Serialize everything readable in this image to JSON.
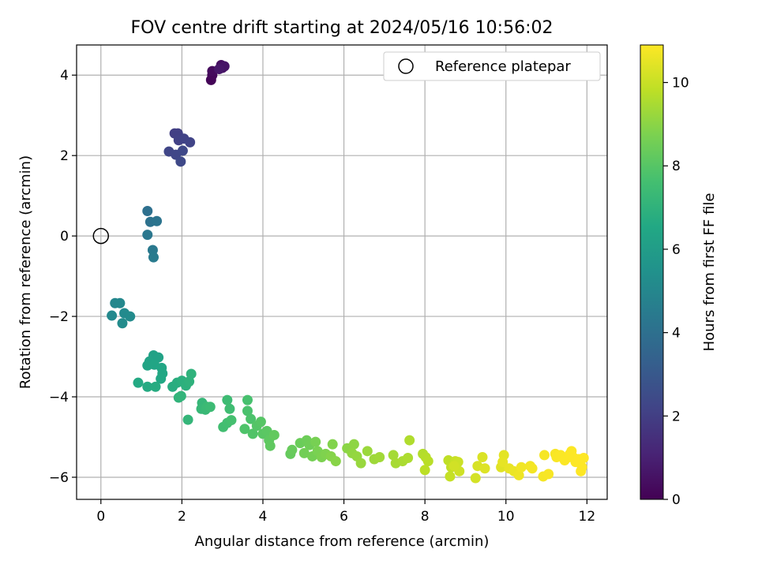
{
  "chart_data": {
    "type": "scatter",
    "title": "FOV centre drift starting at 2024/05/16 10:56:02",
    "xlabel": "Angular distance from reference (arcmin)",
    "ylabel": "Rotation from reference (arcmin)",
    "xlim": [
      -0.6,
      12.5
    ],
    "ylim": [
      -6.55,
      4.75
    ],
    "xticks": [
      0,
      2,
      4,
      6,
      8,
      10,
      12
    ],
    "yticks": [
      -6,
      -4,
      -2,
      0,
      2,
      4
    ],
    "grid": true,
    "colormap": "viridis",
    "colorbar": {
      "label": "Hours from first FF file",
      "range": [
        0,
        10.9
      ],
      "ticks": [
        0,
        2,
        4,
        6,
        8,
        10
      ]
    },
    "legend": {
      "position": "top-right",
      "entries": [
        "Reference platepar"
      ]
    },
    "reference_point": {
      "x": 0,
      "y": 0
    },
    "series": [
      {
        "points": [
          {
            "x": 2.72,
            "y": 3.88,
            "t": 0.1
          },
          {
            "x": 2.75,
            "y": 4.0,
            "t": 0.2
          },
          {
            "x": 2.75,
            "y": 4.1,
            "t": 0.3
          },
          {
            "x": 2.97,
            "y": 4.25,
            "t": 0.4
          },
          {
            "x": 3.0,
            "y": 4.18,
            "t": 0.5
          },
          {
            "x": 3.05,
            "y": 4.22,
            "t": 0.6
          },
          {
            "x": 2.92,
            "y": 4.15,
            "t": 0.7
          },
          {
            "x": 1.82,
            "y": 2.55,
            "t": 2.0
          },
          {
            "x": 1.9,
            "y": 2.55,
            "t": 2.05
          },
          {
            "x": 1.92,
            "y": 2.38,
            "t": 2.1
          },
          {
            "x": 2.05,
            "y": 2.42,
            "t": 2.15
          },
          {
            "x": 2.2,
            "y": 2.33,
            "t": 2.2
          },
          {
            "x": 1.68,
            "y": 2.1,
            "t": 2.25
          },
          {
            "x": 1.85,
            "y": 2.02,
            "t": 2.3
          },
          {
            "x": 2.02,
            "y": 2.12,
            "t": 2.35
          },
          {
            "x": 1.97,
            "y": 1.85,
            "t": 2.4
          },
          {
            "x": 1.15,
            "y": 0.62,
            "t": 4.0
          },
          {
            "x": 1.22,
            "y": 0.35,
            "t": 4.1
          },
          {
            "x": 1.38,
            "y": 0.37,
            "t": 4.2
          },
          {
            "x": 1.15,
            "y": 0.03,
            "t": 4.3
          },
          {
            "x": 1.28,
            "y": -0.35,
            "t": 4.4
          },
          {
            "x": 1.3,
            "y": -0.53,
            "t": 4.5
          },
          {
            "x": 0.35,
            "y": -1.67,
            "t": 5.0
          },
          {
            "x": 0.47,
            "y": -1.67,
            "t": 5.05
          },
          {
            "x": 0.27,
            "y": -1.98,
            "t": 5.1
          },
          {
            "x": 0.58,
            "y": -1.92,
            "t": 5.15
          },
          {
            "x": 0.72,
            "y": -2.0,
            "t": 5.2
          },
          {
            "x": 0.53,
            "y": -2.17,
            "t": 5.25
          },
          {
            "x": 1.3,
            "y": -2.97,
            "t": 6.2
          },
          {
            "x": 1.42,
            "y": -3.02,
            "t": 6.25
          },
          {
            "x": 1.2,
            "y": -3.12,
            "t": 6.3
          },
          {
            "x": 1.15,
            "y": -3.22,
            "t": 6.35
          },
          {
            "x": 1.32,
            "y": -3.2,
            "t": 6.4
          },
          {
            "x": 1.5,
            "y": -3.28,
            "t": 6.45
          },
          {
            "x": 1.52,
            "y": -3.42,
            "t": 6.5
          },
          {
            "x": 1.48,
            "y": -3.55,
            "t": 6.55
          },
          {
            "x": 0.92,
            "y": -3.65,
            "t": 6.6
          },
          {
            "x": 1.15,
            "y": -3.75,
            "t": 6.65
          },
          {
            "x": 1.35,
            "y": -3.75,
            "t": 6.7
          },
          {
            "x": 1.77,
            "y": -3.75,
            "t": 6.75
          },
          {
            "x": 1.88,
            "y": -3.65,
            "t": 6.8
          },
          {
            "x": 2.0,
            "y": -3.6,
            "t": 6.85
          },
          {
            "x": 2.1,
            "y": -3.72,
            "t": 6.9
          },
          {
            "x": 2.18,
            "y": -3.62,
            "t": 6.95
          },
          {
            "x": 2.23,
            "y": -3.43,
            "t": 7.0
          },
          {
            "x": 1.92,
            "y": -4.02,
            "t": 7.05
          },
          {
            "x": 1.98,
            "y": -3.98,
            "t": 7.1
          },
          {
            "x": 2.15,
            "y": -4.57,
            "t": 7.15
          },
          {
            "x": 2.5,
            "y": -4.15,
            "t": 7.2
          },
          {
            "x": 2.48,
            "y": -4.3,
            "t": 7.25
          },
          {
            "x": 2.58,
            "y": -4.32,
            "t": 7.3
          },
          {
            "x": 2.62,
            "y": -4.25,
            "t": 7.35
          },
          {
            "x": 2.7,
            "y": -4.25,
            "t": 7.4
          },
          {
            "x": 3.12,
            "y": -4.08,
            "t": 7.45
          },
          {
            "x": 3.18,
            "y": -4.3,
            "t": 7.5
          },
          {
            "x": 3.02,
            "y": -4.75,
            "t": 7.55
          },
          {
            "x": 3.12,
            "y": -4.65,
            "t": 7.6
          },
          {
            "x": 3.22,
            "y": -4.58,
            "t": 7.65
          },
          {
            "x": 3.62,
            "y": -4.08,
            "t": 7.7
          },
          {
            "x": 3.62,
            "y": -4.35,
            "t": 7.75
          },
          {
            "x": 3.7,
            "y": -4.55,
            "t": 7.8
          },
          {
            "x": 3.55,
            "y": -4.8,
            "t": 7.85
          },
          {
            "x": 3.75,
            "y": -4.92,
            "t": 7.9
          },
          {
            "x": 3.85,
            "y": -4.72,
            "t": 7.95
          },
          {
            "x": 3.95,
            "y": -4.62,
            "t": 8.0
          },
          {
            "x": 4.0,
            "y": -4.92,
            "t": 8.05
          },
          {
            "x": 4.1,
            "y": -4.85,
            "t": 8.1
          },
          {
            "x": 4.15,
            "y": -5.08,
            "t": 8.15
          },
          {
            "x": 4.18,
            "y": -5.22,
            "t": 8.2
          },
          {
            "x": 4.28,
            "y": -4.95,
            "t": 8.25
          },
          {
            "x": 4.68,
            "y": -5.42,
            "t": 8.3
          },
          {
            "x": 4.72,
            "y": -5.32,
            "t": 8.35
          },
          {
            "x": 4.92,
            "y": -5.15,
            "t": 8.4
          },
          {
            "x": 5.08,
            "y": -5.08,
            "t": 8.45
          },
          {
            "x": 5.15,
            "y": -5.2,
            "t": 8.5
          },
          {
            "x": 5.02,
            "y": -5.4,
            "t": 8.55
          },
          {
            "x": 5.22,
            "y": -5.48,
            "t": 8.6
          },
          {
            "x": 5.3,
            "y": -5.12,
            "t": 8.65
          },
          {
            "x": 5.35,
            "y": -5.35,
            "t": 8.7
          },
          {
            "x": 5.45,
            "y": -5.5,
            "t": 8.75
          },
          {
            "x": 5.55,
            "y": -5.42,
            "t": 8.8
          },
          {
            "x": 5.72,
            "y": -5.18,
            "t": 8.85
          },
          {
            "x": 5.68,
            "y": -5.48,
            "t": 8.9
          },
          {
            "x": 5.8,
            "y": -5.6,
            "t": 8.95
          },
          {
            "x": 6.08,
            "y": -5.28,
            "t": 9.0
          },
          {
            "x": 6.25,
            "y": -5.18,
            "t": 9.05
          },
          {
            "x": 6.2,
            "y": -5.4,
            "t": 9.1
          },
          {
            "x": 6.32,
            "y": -5.48,
            "t": 9.15
          },
          {
            "x": 6.42,
            "y": -5.65,
            "t": 9.2
          },
          {
            "x": 6.58,
            "y": -5.35,
            "t": 9.25
          },
          {
            "x": 6.75,
            "y": -5.55,
            "t": 9.3
          },
          {
            "x": 6.88,
            "y": -5.5,
            "t": 9.35
          },
          {
            "x": 7.22,
            "y": -5.45,
            "t": 9.4
          },
          {
            "x": 7.28,
            "y": -5.65,
            "t": 9.45
          },
          {
            "x": 7.45,
            "y": -5.6,
            "t": 9.5
          },
          {
            "x": 7.58,
            "y": -5.52,
            "t": 9.55
          },
          {
            "x": 7.62,
            "y": -5.08,
            "t": 9.6
          },
          {
            "x": 7.95,
            "y": -5.42,
            "t": 9.65
          },
          {
            "x": 8.02,
            "y": -5.5,
            "t": 9.7
          },
          {
            "x": 8.08,
            "y": -5.6,
            "t": 9.75
          },
          {
            "x": 8.0,
            "y": -5.82,
            "t": 9.8
          },
          {
            "x": 8.58,
            "y": -5.58,
            "t": 9.85
          },
          {
            "x": 8.65,
            "y": -5.75,
            "t": 9.9
          },
          {
            "x": 8.62,
            "y": -5.98,
            "t": 9.95
          },
          {
            "x": 8.75,
            "y": -5.6,
            "t": 10.0
          },
          {
            "x": 8.82,
            "y": -5.62,
            "t": 10.05
          },
          {
            "x": 8.85,
            "y": -5.85,
            "t": 10.1
          },
          {
            "x": 8.72,
            "y": -5.72,
            "t": 10.15
          },
          {
            "x": 9.25,
            "y": -6.02,
            "t": 10.2
          },
          {
            "x": 9.3,
            "y": -5.72,
            "t": 10.25
          },
          {
            "x": 9.42,
            "y": -5.5,
            "t": 10.3
          },
          {
            "x": 9.48,
            "y": -5.78,
            "t": 10.35
          },
          {
            "x": 9.88,
            "y": -5.75,
            "t": 10.4
          },
          {
            "x": 9.95,
            "y": -5.45,
            "t": 10.45
          },
          {
            "x": 9.92,
            "y": -5.62,
            "t": 10.5
          },
          {
            "x": 10.08,
            "y": -5.78,
            "t": 10.55
          },
          {
            "x": 10.2,
            "y": -5.85,
            "t": 10.6
          },
          {
            "x": 10.32,
            "y": -5.95,
            "t": 10.65
          },
          {
            "x": 10.38,
            "y": -5.75,
            "t": 10.7
          },
          {
            "x": 10.6,
            "y": -5.72,
            "t": 10.72
          },
          {
            "x": 10.65,
            "y": -5.78,
            "t": 10.74
          },
          {
            "x": 10.92,
            "y": -5.98,
            "t": 10.76
          },
          {
            "x": 10.95,
            "y": -5.45,
            "t": 10.78
          },
          {
            "x": 11.05,
            "y": -5.92,
            "t": 10.8
          },
          {
            "x": 11.22,
            "y": -5.42,
            "t": 10.82
          },
          {
            "x": 11.25,
            "y": -5.5,
            "t": 10.84
          },
          {
            "x": 11.35,
            "y": -5.45,
            "t": 10.85
          },
          {
            "x": 11.45,
            "y": -5.58,
            "t": 10.86
          },
          {
            "x": 11.55,
            "y": -5.5,
            "t": 10.87
          },
          {
            "x": 11.58,
            "y": -5.42,
            "t": 10.88
          },
          {
            "x": 11.62,
            "y": -5.35,
            "t": 10.88
          },
          {
            "x": 11.68,
            "y": -5.52,
            "t": 10.89
          },
          {
            "x": 11.72,
            "y": -5.62,
            "t": 10.89
          },
          {
            "x": 11.8,
            "y": -5.55,
            "t": 10.9
          },
          {
            "x": 11.88,
            "y": -5.75,
            "t": 10.9
          },
          {
            "x": 11.92,
            "y": -5.52,
            "t": 10.9
          },
          {
            "x": 11.85,
            "y": -5.85,
            "t": 10.9
          }
        ]
      }
    ]
  }
}
